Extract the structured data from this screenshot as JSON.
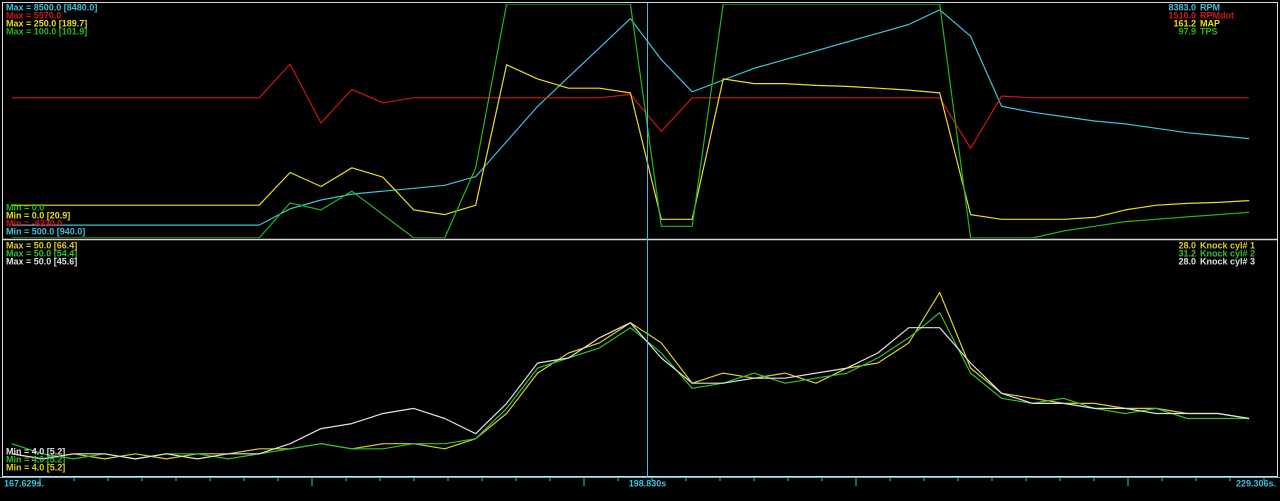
{
  "time_axis": {
    "xlim": [
      167.629,
      229.306
    ],
    "cursor": 198.83,
    "start_label": "167.629s.",
    "cursor_label": "198.830s",
    "end_label": "229.306s."
  },
  "x": [
    168,
    169.5,
    171,
    172.5,
    174,
    175.5,
    177,
    178.5,
    180,
    181.5,
    183,
    184.5,
    186,
    187.5,
    189,
    190.5,
    192,
    193.5,
    195,
    196.5,
    198,
    199.5,
    201,
    202.5,
    204,
    205.5,
    207,
    208.5,
    210,
    211.5,
    213,
    214.5,
    216,
    217.5,
    219,
    220.5,
    222,
    223.5,
    225,
    226.5,
    228
  ],
  "panels": [
    {
      "channels": [
        {
          "name": "RPM",
          "color": "#3cc3dc",
          "max_label": "Max = 8500.0 [8480.0]",
          "min_label": "Min = 500.0 [940.0]",
          "cursor_value": "8383.0",
          "ylim": [
            500,
            8500
          ],
          "values": [
            940,
            940,
            940,
            940,
            940,
            940,
            940,
            940,
            940,
            1500,
            1800,
            2000,
            2100,
            2200,
            2300,
            2600,
            3800,
            5000,
            6000,
            7000,
            8000,
            6600,
            5500,
            5900,
            6300,
            6600,
            6900,
            7200,
            7500,
            7800,
            8300,
            7400,
            5000,
            4800,
            4650,
            4500,
            4400,
            4250,
            4100,
            4000,
            3900
          ]
        },
        {
          "name": "RPMdot",
          "color": "#d01414",
          "max_label": "Max = 5570.0",
          "min_label": "Min = -8330.0",
          "cursor_value": "1510.0",
          "ylim": [
            -8330,
            5570
          ],
          "values": [
            0,
            0,
            0,
            0,
            0,
            0,
            0,
            0,
            0,
            2000,
            -1500,
            500,
            -300,
            0,
            0,
            0,
            0,
            0,
            0,
            0,
            200,
            -2000,
            0,
            0,
            0,
            0,
            0,
            0,
            0,
            0,
            0,
            -3000,
            100,
            0,
            0,
            0,
            0,
            0,
            0,
            0,
            0
          ]
        },
        {
          "name": "MAP",
          "color": "#e6df20",
          "max_label": "Max = 250.0 [189.7]",
          "min_label": "Min = 0.0 [20.9]",
          "cursor_value": "161.2",
          "ylim": [
            0,
            250
          ],
          "values": [
            35,
            35,
            35,
            35,
            35,
            35,
            35,
            35,
            35,
            70,
            55,
            75,
            65,
            30,
            25,
            35,
            185,
            170,
            160,
            160,
            155,
            20,
            20,
            170,
            165,
            165,
            163,
            162,
            160,
            158,
            155,
            25,
            20,
            20,
            20,
            22,
            30,
            35,
            37,
            38,
            40
          ]
        },
        {
          "name": "TPS",
          "color": "#22b622",
          "max_label": "Max = 100.0 [101.9]",
          "min_label": "Min = 0.0",
          "cursor_value": "97.9",
          "ylim": [
            0,
            100
          ],
          "values": [
            0,
            0,
            0,
            0,
            0,
            0,
            0,
            0,
            0,
            15,
            12,
            20,
            10,
            0,
            0,
            30,
            100,
            100,
            100,
            100,
            100,
            5,
            5,
            100,
            100,
            100,
            100,
            100,
            100,
            100,
            100,
            0,
            0,
            0,
            3,
            5,
            7,
            8,
            9,
            10,
            11
          ]
        }
      ]
    },
    {
      "channels": [
        {
          "name": "Knock cyl# 1",
          "color": "#d8d020",
          "max_label": "Max = 50.0 [66.4]",
          "min_label": "Min = 4.0 [5.2]",
          "cursor_value": "28.0",
          "ylim": [
            4,
            50
          ],
          "values": [
            8,
            7,
            8,
            7,
            8,
            7,
            8,
            8,
            9,
            9,
            10,
            9,
            10,
            10,
            9,
            11,
            16,
            24,
            28,
            30,
            34,
            30,
            22,
            24,
            23,
            24,
            22,
            25,
            26,
            30,
            40,
            25,
            20,
            19,
            18,
            18,
            17,
            17,
            16,
            16,
            15
          ]
        },
        {
          "name": "Knock cyl# 2",
          "color": "#30c030",
          "max_label": "Max = 50.0 [54.4]",
          "min_label": "Min = 4.0 [5.2]",
          "cursor_value": "31.2",
          "ylim": [
            4,
            50
          ],
          "values": [
            10,
            8,
            7,
            8,
            7,
            8,
            8,
            7,
            8,
            9,
            10,
            9,
            9,
            10,
            10,
            11,
            17,
            25,
            27,
            29,
            33,
            28,
            21,
            22,
            24,
            22,
            23,
            24,
            27,
            31,
            36,
            24,
            19,
            18,
            19,
            17,
            16,
            17,
            15,
            15,
            15
          ]
        },
        {
          "name": "Knock cyl# 3",
          "color": "#e0e0e0",
          "max_label": "Max = 50.0 [45.6]",
          "min_label": "Min = 4.0 [5.2]",
          "cursor_value": "28.0",
          "ylim": [
            4,
            50
          ],
          "values": [
            8,
            7,
            8,
            8,
            7,
            8,
            7,
            8,
            8,
            10,
            13,
            14,
            16,
            17,
            15,
            12,
            18,
            26,
            27,
            31,
            34,
            27,
            22,
            22,
            23,
            23,
            24,
            25,
            28,
            33,
            33,
            26,
            20,
            18,
            18,
            17,
            17,
            16,
            16,
            16,
            15
          ]
        }
      ]
    }
  ]
}
